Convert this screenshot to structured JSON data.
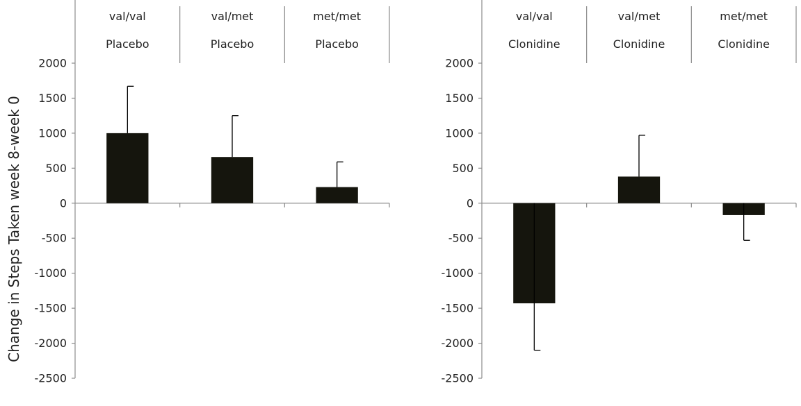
{
  "y_axis_label": "Change in Steps Taken week 8-week 0",
  "chart_data": [
    {
      "type": "bar",
      "categories": [
        "val/val",
        "val/met",
        "met/met"
      ],
      "group_label": "Placebo",
      "values": [
        1000,
        660,
        230
      ],
      "error_plus": [
        670,
        590,
        360
      ],
      "ylim": [
        -2500,
        2000
      ],
      "yticks": [
        2000,
        1500,
        1000,
        500,
        0,
        -500,
        -1000,
        -1500,
        -2000,
        -2500
      ],
      "ylabel": "Change in Steps Taken week 8-week 0",
      "bar_color": "#15150d",
      "grid": false
    },
    {
      "type": "bar",
      "categories": [
        "val/val",
        "val/met",
        "met/met"
      ],
      "group_label": "Clonidine",
      "values": [
        -1430,
        380,
        -170
      ],
      "error_plus": [
        670,
        590,
        360
      ],
      "ylim": [
        -2500,
        2000
      ],
      "yticks": [
        2000,
        1500,
        1000,
        500,
        0,
        -500,
        -1000,
        -1500,
        -2000,
        -2500
      ],
      "bar_color": "#15150d",
      "grid": false
    }
  ]
}
